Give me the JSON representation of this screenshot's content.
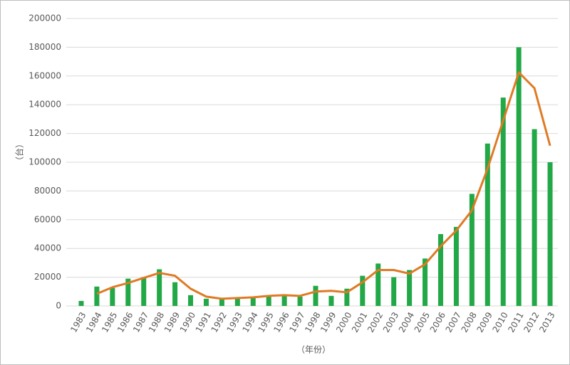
{
  "chart_data": {
    "type": "bar_line",
    "y_label": "（台）",
    "x_label": "（年份）",
    "categories": [
      "1983",
      "1984",
      "1985",
      "1986",
      "1987",
      "1988",
      "1989",
      "1990",
      "1991",
      "1992",
      "1993",
      "1994",
      "1995",
      "1996",
      "1997",
      "1998",
      "1999",
      "2000",
      "2001",
      "2002",
      "2003",
      "2004",
      "2005",
      "2006",
      "2007",
      "2008",
      "2009",
      "2010",
      "2011",
      "2012",
      "2013"
    ],
    "series": [
      {
        "color": "#22a846",
        "kind": "bar",
        "values": [
          3500,
          13500,
          12500,
          19000,
          20000,
          25500,
          16500,
          7500,
          5000,
          4500,
          5000,
          5500,
          7000,
          7500,
          6500,
          14000,
          7000,
          12000,
          21000,
          29500,
          20000,
          25000,
          33000,
          50000,
          55000,
          78000,
          113000,
          145000,
          180000,
          123000,
          100000
        ]
      },
      {
        "color": "#e07a24",
        "kind": "line",
        "values": [
          null,
          8500,
          13000,
          16000,
          19500,
          23000,
          21000,
          12000,
          6500,
          5000,
          5500,
          6000,
          7000,
          7500,
          7000,
          10000,
          10500,
          9500,
          16500,
          25000,
          25000,
          22500,
          29000,
          41500,
          52500,
          66500,
          95500,
          129000,
          162500,
          151500,
          111500
        ]
      }
    ],
    "ylim": [
      0,
      200000
    ],
    "yticks": [
      0,
      20000,
      40000,
      60000,
      80000,
      100000,
      120000,
      140000,
      160000,
      180000,
      200000
    ],
    "grid": true
  }
}
